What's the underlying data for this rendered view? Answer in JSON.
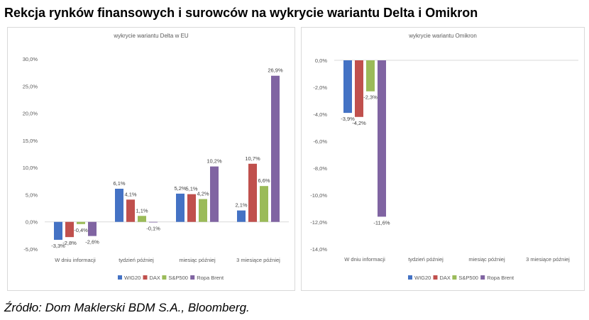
{
  "title": "Rekcja rynków finansowych i surowców na wykrycie wariantu Delta i Omikron",
  "source": "Źródło: Dom Maklerski BDM S.A., Bloomberg.",
  "colors": {
    "WIG20": "#4472C4",
    "DAX": "#C0504D",
    "S&P500": "#9BBB59",
    "Ropa Brent": "#8064A2"
  },
  "chart_data": [
    {
      "type": "bar",
      "title": "wykrycie wariantu Delta w EU",
      "categories": [
        "W dniu informacji",
        "tydzień później",
        "miesiąc później",
        "3 miesiące później"
      ],
      "ylim": [
        -5,
        30
      ],
      "yticks": [
        "-5,0%",
        "0,0%",
        "5,0%",
        "10,0%",
        "15,0%",
        "20,0%",
        "25,0%",
        "30,0%"
      ],
      "legend_position": "bottom",
      "grid": false,
      "series": [
        {
          "name": "WIG20",
          "values": [
            -3.3,
            6.1,
            5.2,
            2.1
          ],
          "labels": [
            "-3,3%",
            "6,1%",
            "5,2%",
            "2,1%"
          ]
        },
        {
          "name": "DAX",
          "values": [
            -2.8,
            4.1,
            5.1,
            10.7
          ],
          "labels": [
            "-2,8%",
            "4,1%",
            "5,1%",
            "10,7%"
          ]
        },
        {
          "name": "S&P500",
          "values": [
            -0.4,
            1.1,
            4.2,
            6.6
          ],
          "labels": [
            "-0,4%",
            "1,1%",
            "4,2%",
            "6,6%"
          ]
        },
        {
          "name": "Ropa Brent",
          "values": [
            -2.6,
            -0.1,
            10.2,
            26.9
          ],
          "labels": [
            "-2,6%",
            "-0,1%",
            "10,2%",
            "26,9%"
          ]
        }
      ]
    },
    {
      "type": "bar",
      "title": "wykrycie wariantu Omikron",
      "categories": [
        "W dniu informacji",
        "tydzień później",
        "miesiąc później",
        "3 miesiące później"
      ],
      "ylim": [
        -14,
        0
      ],
      "yticks": [
        "-14,0%",
        "-12,0%",
        "-10,0%",
        "-8,0%",
        "-6,0%",
        "-4,0%",
        "-2,0%",
        "0,0%"
      ],
      "legend_position": "bottom",
      "grid": false,
      "series": [
        {
          "name": "WIG20",
          "values": [
            -3.9,
            null,
            null,
            null
          ],
          "labels": [
            "-3,9%",
            "",
            "",
            ""
          ]
        },
        {
          "name": "DAX",
          "values": [
            -4.2,
            null,
            null,
            null
          ],
          "labels": [
            "-4,2%",
            "",
            "",
            ""
          ]
        },
        {
          "name": "S&P500",
          "values": [
            -2.3,
            null,
            null,
            null
          ],
          "labels": [
            "-2,3%",
            "",
            "",
            ""
          ]
        },
        {
          "name": "Ropa Brent",
          "values": [
            -11.6,
            null,
            null,
            null
          ],
          "labels": [
            "-11,6%",
            "",
            "",
            ""
          ]
        }
      ]
    }
  ]
}
